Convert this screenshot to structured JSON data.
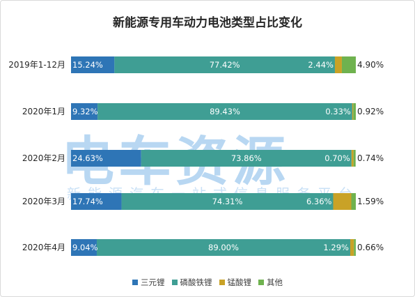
{
  "title": "新能源专用车动力电池类型占比变化",
  "watermark": {
    "main": "电车资源",
    "sub": "新能源汽车一站式信息服务平台"
  },
  "colors": {
    "三元锂": "#2e75b6",
    "磷酸铁锂": "#3f9e94",
    "锰酸锂": "#c9a227",
    "其他": "#6fb24f"
  },
  "chart_data": {
    "type": "bar",
    "orientation": "horizontal",
    "stacked": "percent",
    "title": "新能源专用车动力电池类型占比变化",
    "categories": [
      "2019年1-12月",
      "2020年1月",
      "2020年2月",
      "2020年3月",
      "2020年4月"
    ],
    "series": [
      {
        "name": "三元锂",
        "values": [
          15.24,
          9.32,
          24.63,
          17.74,
          9.04
        ],
        "labels": [
          "15.24%",
          "9.32%",
          "24.63%",
          "17.74%",
          "9.04%"
        ]
      },
      {
        "name": "磷酸铁锂",
        "values": [
          77.42,
          89.43,
          73.86,
          74.31,
          89.0
        ],
        "labels": [
          "77.42%",
          "89.43%",
          "73.86%",
          "74.31%",
          "89.00%"
        ]
      },
      {
        "name": "锰酸锂",
        "values": [
          2.44,
          0.33,
          0.7,
          6.36,
          1.29
        ],
        "labels": [
          "2.44%",
          "0.33%",
          "0.70%",
          "6.36%",
          "1.29%"
        ]
      },
      {
        "name": "其他",
        "values": [
          4.9,
          0.92,
          0.74,
          1.59,
          0.66
        ],
        "labels": [
          "4.90%",
          "0.92%",
          "0.74%",
          "1.59%",
          "0.66%"
        ]
      }
    ],
    "xlim": [
      0,
      100
    ],
    "grid": false,
    "legend_position": "bottom"
  }
}
